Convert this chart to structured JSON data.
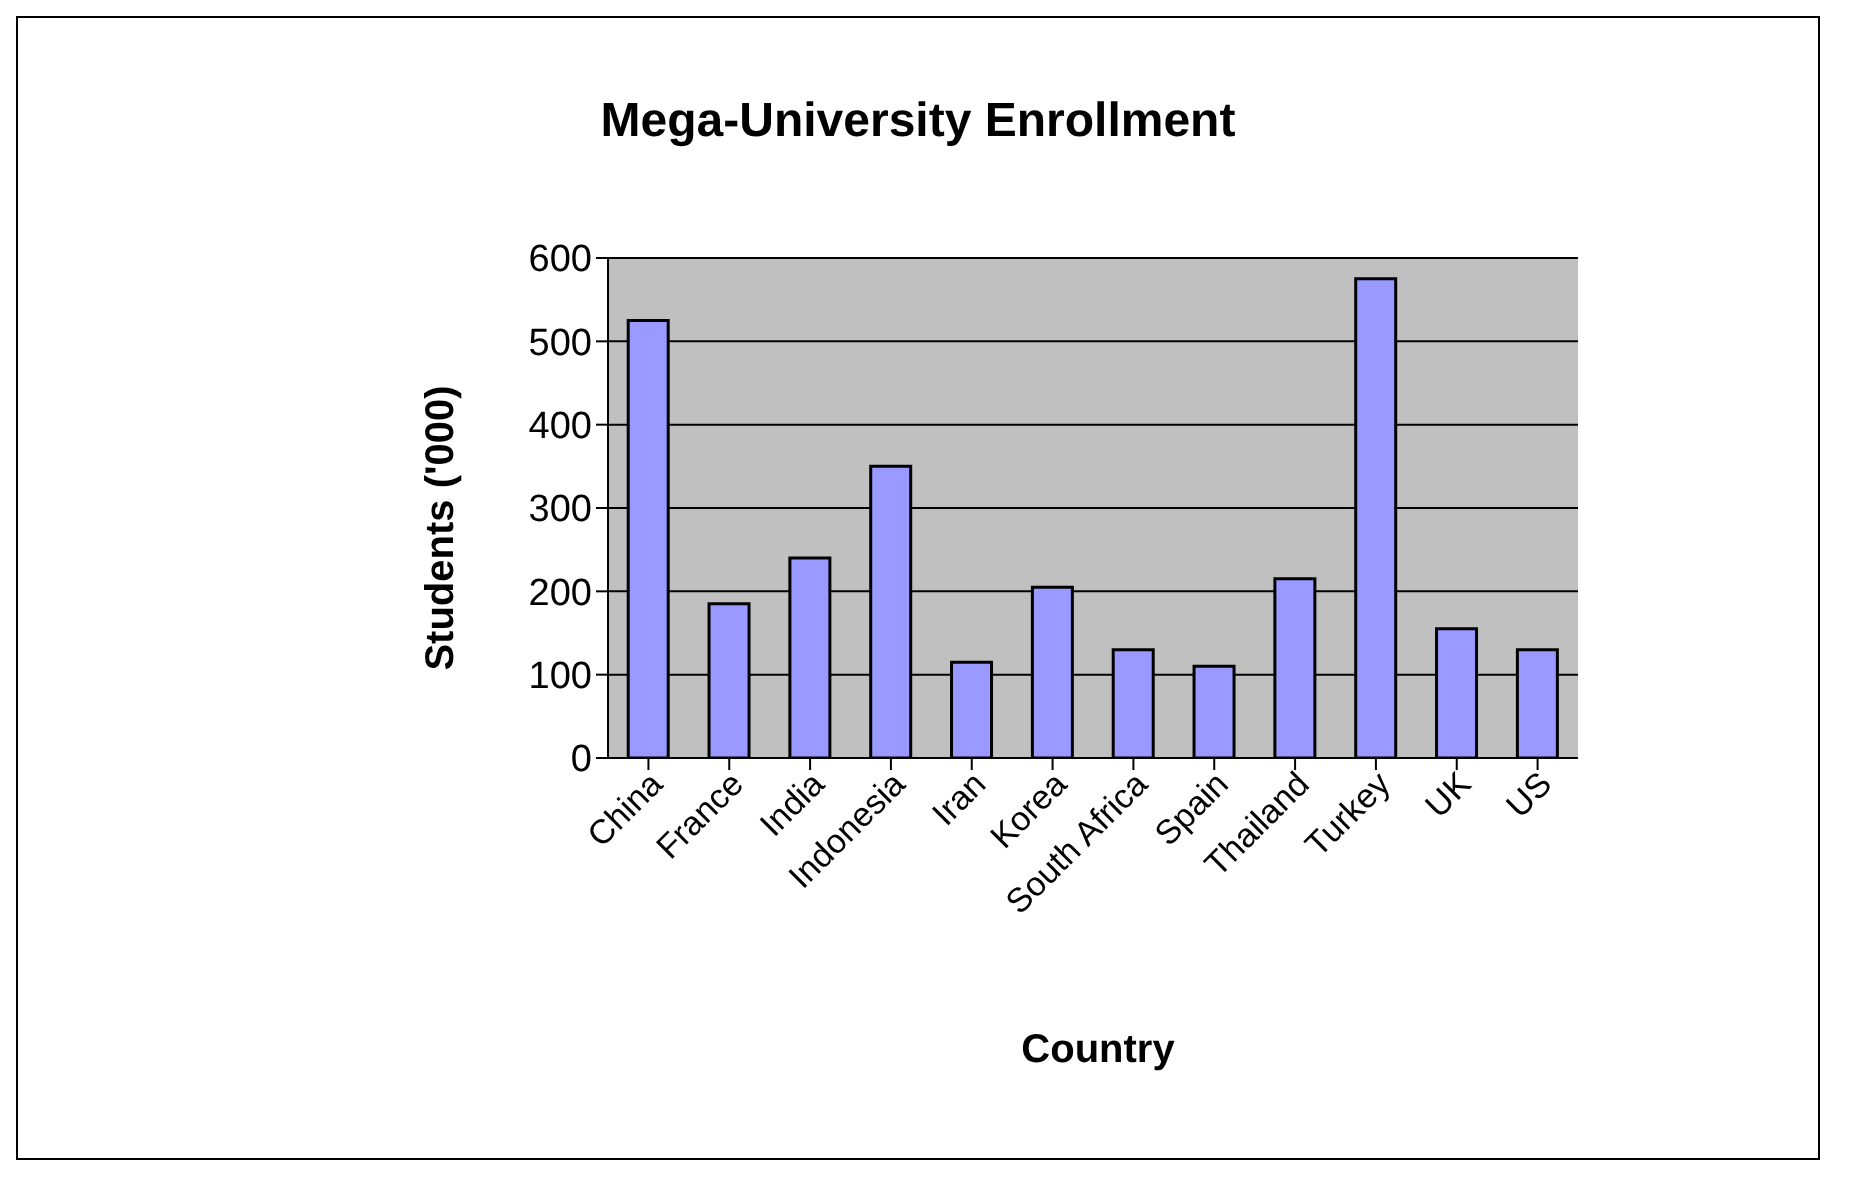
{
  "chart_data": {
    "type": "bar",
    "title": "Mega-University Enrollment",
    "xlabel": "Country",
    "ylabel": "Students ('000)",
    "categories": [
      "China",
      "France",
      "India",
      "Indonesia",
      "Iran",
      "Korea",
      "South Africa",
      "Spain",
      "Thailand",
      "Turkey",
      "UK",
      "US"
    ],
    "values": [
      525,
      185,
      240,
      350,
      115,
      205,
      130,
      110,
      215,
      575,
      155,
      130
    ],
    "color": "#9999ff",
    "ylim": [
      0,
      600
    ],
    "yticks": [
      0,
      100,
      200,
      300,
      400,
      500,
      600
    ],
    "grid": "y",
    "legend": false
  }
}
